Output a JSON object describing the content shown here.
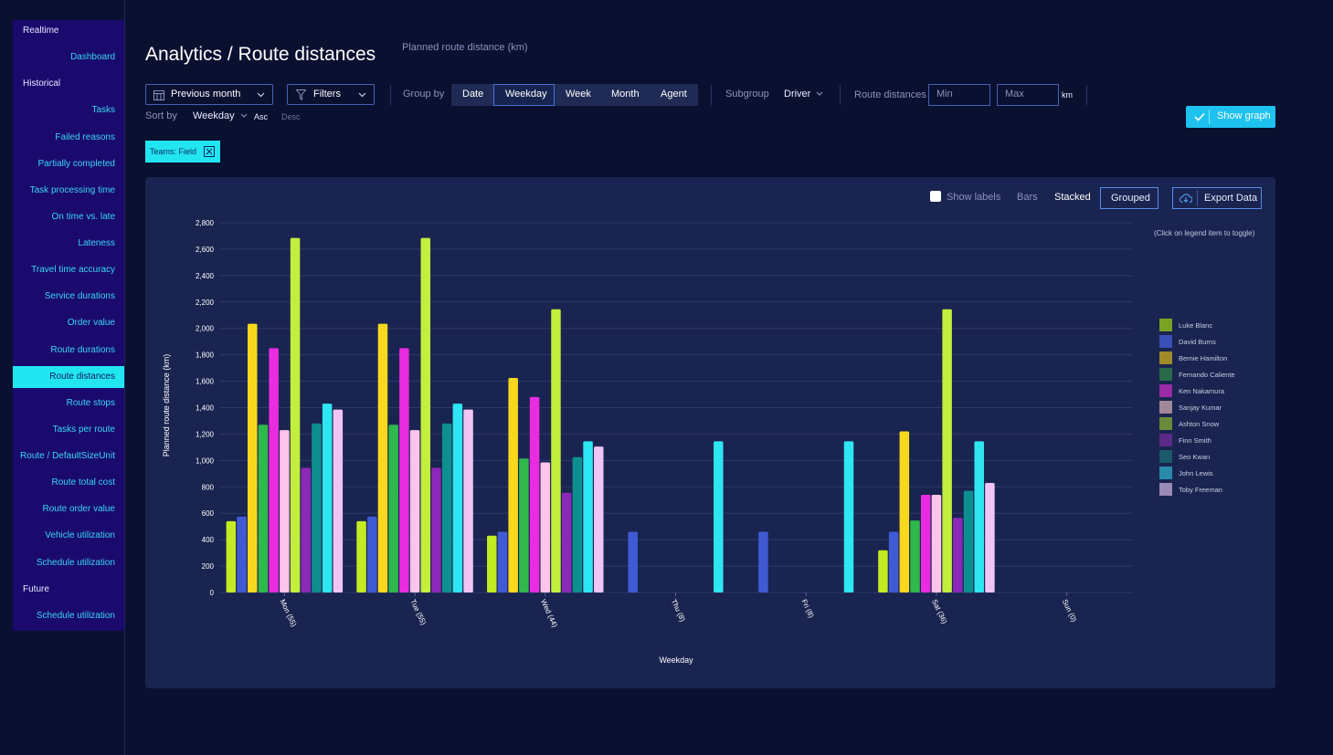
{
  "sidebar": {
    "realtime": "Realtime",
    "dashboard": "Dashboard",
    "historical": "Historical",
    "items": [
      "Tasks",
      "Failed reasons",
      "Partially completed",
      "Task processing time",
      "On time vs. late",
      "Lateness",
      "Travel time accuracy",
      "Service durations",
      "Order value",
      "Route durations",
      "Route distances",
      "Route stops",
      "Tasks per route",
      "Route / DefaultSizeUnit",
      "Route total cost",
      "Route order value",
      "Vehicle utilization",
      "Schedule utilization"
    ],
    "active": "Route distances",
    "future": "Future",
    "future_items": [
      "Schedule utilization"
    ]
  },
  "header": {
    "title": "Analytics / Route distances",
    "subtitle": "Planned route distance (km)"
  },
  "toolbar": {
    "period": "Previous month",
    "filters": "Filters",
    "group_by_label": "Group by",
    "group_by_options": [
      "Date",
      "Weekday",
      "Week",
      "Month",
      "Agent"
    ],
    "group_by_selected": "Weekday",
    "subgroup_label": "Subgroup",
    "subgroup_value": "Driver",
    "route_distances_label": "Route distances",
    "min_placeholder": "Min",
    "max_placeholder": "Max",
    "unit": "km",
    "sort_by_label": "Sort by",
    "sort_by_value": "Weekday",
    "asc": "Asc",
    "desc": "Desc",
    "show_graph": "Show graph"
  },
  "filter_chip": "Teams: Field",
  "chart_controls": {
    "show_labels": "Show labels",
    "bars": "Bars",
    "stacked": "Stacked",
    "grouped": "Grouped",
    "export": "Export Data",
    "legend_hint": "(Click on legend item to toggle)"
  },
  "chart_data": {
    "type": "bar",
    "mode": "grouped",
    "xlabel": "Weekday",
    "ylabel": "Planned route distance (km)",
    "ylim": [
      0,
      2800
    ],
    "yticks": [
      0,
      200,
      400,
      600,
      800,
      1000,
      1200,
      1400,
      1600,
      1800,
      2000,
      2200,
      2400,
      2600,
      2800
    ],
    "categories": [
      "Mon (55)",
      "Tue (55)",
      "Wed (44)",
      "Thu (8)",
      "Fri (8)",
      "Sat (36)",
      "Sun (0)"
    ],
    "series": [
      {
        "name": "Luke Blanc",
        "legend_color": "#7aa324",
        "bar_color": "#c3ea22",
        "values": [
          540,
          540,
          430,
          0,
          0,
          320,
          0
        ]
      },
      {
        "name": "David Burns",
        "legend_color": "#3b4fb8",
        "bar_color": "#3f5ad3",
        "values": [
          575,
          575,
          460,
          460,
          460,
          460,
          0
        ]
      },
      {
        "name": "Bernie Hamilton",
        "legend_color": "#a08a2a",
        "bar_color": "#f8d81c",
        "values": [
          2035,
          2035,
          1625,
          0,
          0,
          1220,
          0
        ]
      },
      {
        "name": "Fernando Caliente",
        "legend_color": "#2a6a48",
        "bar_color": "#2fb84c",
        "values": [
          1270,
          1270,
          1015,
          0,
          0,
          545,
          0
        ]
      },
      {
        "name": "Ken Nakamura",
        "legend_color": "#9a2aa6",
        "bar_color": "#ea2ce0",
        "values": [
          1850,
          1850,
          1480,
          0,
          0,
          740,
          0
        ]
      },
      {
        "name": "Sanjay Kumar",
        "legend_color": "#a0889a",
        "bar_color": "#ffc4ea",
        "values": [
          1230,
          1230,
          985,
          0,
          0,
          740,
          0
        ]
      },
      {
        "name": "Ashton Snow",
        "legend_color": "#6a8a3a",
        "bar_color": "#c2ee3c",
        "values": [
          2685,
          2685,
          2145,
          0,
          0,
          2145,
          0
        ]
      },
      {
        "name": "Finn Smith",
        "legend_color": "#5a2a8a",
        "bar_color": "#8a28b8",
        "values": [
          945,
          945,
          755,
          0,
          0,
          565,
          0
        ]
      },
      {
        "name": "Seo Kwan",
        "legend_color": "#1a5a6a",
        "bar_color": "#0e8f8f",
        "values": [
          1280,
          1280,
          1025,
          0,
          0,
          770,
          0
        ]
      },
      {
        "name": "John Lewis",
        "legend_color": "#2a8aaa",
        "bar_color": "#2ee6f2",
        "values": [
          1430,
          1430,
          1145,
          1145,
          1145,
          1145,
          0
        ]
      },
      {
        "name": "Toby Freeman",
        "legend_color": "#9a8ab8",
        "bar_color": "#f0c4f4",
        "values": [
          1385,
          1385,
          1105,
          0,
          0,
          830,
          0
        ]
      }
    ]
  }
}
